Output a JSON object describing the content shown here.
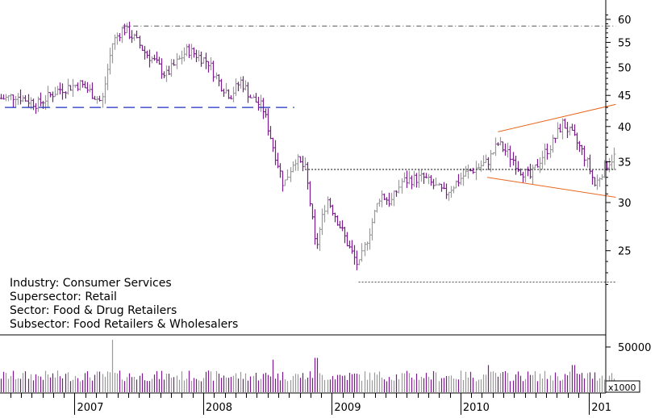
{
  "chart_data": {
    "type": "ohlc",
    "price_axis": {
      "scale": "log",
      "ylim": [
        21,
        62
      ],
      "ticks": [
        25,
        30,
        35,
        40,
        45,
        50,
        55,
        60
      ]
    },
    "volume_axis": {
      "tick": 50000,
      "unit_label": "x1000"
    },
    "x_labels": [
      "2007",
      "2008",
      "2009",
      "2010",
      "201"
    ],
    "info_lines": [
      "Industry: Consumer Services",
      "Supersector: Retail",
      "Sector: Food & Drug Retailers",
      "Subsector: Food Retailers & Wholesalers"
    ],
    "close_path": [
      [
        "2006-06",
        44.5
      ],
      [
        "2006-07",
        45
      ],
      [
        "2006-09",
        43.5
      ],
      [
        "2006-11",
        46
      ],
      [
        "2007-01",
        47
      ],
      [
        "2007-02",
        45.5
      ],
      [
        "2007-03",
        43.8
      ],
      [
        "2007-04",
        55
      ],
      [
        "2007-05",
        58
      ],
      [
        "2007-06",
        56
      ],
      [
        "2007-07",
        53
      ],
      [
        "2007-08",
        51
      ],
      [
        "2007-09",
        48.5
      ],
      [
        "2007-10",
        51
      ],
      [
        "2007-11",
        53.5
      ],
      [
        "2008-01",
        51
      ],
      [
        "2008-02",
        47
      ],
      [
        "2008-03",
        45
      ],
      [
        "2008-04",
        47.5
      ],
      [
        "2008-05",
        44.5
      ],
      [
        "2008-06",
        43
      ],
      [
        "2008-07",
        37
      ],
      [
        "2008-08",
        32
      ],
      [
        "2008-09",
        35.5
      ],
      [
        "2008-10",
        34
      ],
      [
        "2008-11",
        25
      ],
      [
        "2008-12",
        30.5
      ],
      [
        "2009-01",
        28
      ],
      [
        "2009-02",
        25.5
      ],
      [
        "2009-03",
        23.5
      ],
      [
        "2009-04",
        27
      ],
      [
        "2009-05",
        31
      ],
      [
        "2009-06",
        30
      ],
      [
        "2009-07",
        32.5
      ],
      [
        "2009-09",
        33
      ],
      [
        "2009-11",
        31
      ],
      [
        "2010-01",
        33.5
      ],
      [
        "2010-03",
        35
      ],
      [
        "2010-04",
        37.5
      ],
      [
        "2010-05",
        36
      ],
      [
        "2010-06",
        34
      ],
      [
        "2010-07",
        33
      ],
      [
        "2010-08",
        35.5
      ],
      [
        "2010-09",
        37.5
      ],
      [
        "2010-10",
        40.5
      ],
      [
        "2010-11",
        38.5
      ],
      [
        "2010-12",
        36
      ],
      [
        "2011-01",
        32
      ],
      [
        "2011-02",
        34.5
      ],
      [
        "2011-03",
        36
      ]
    ],
    "volume_spikes": [
      [
        "2007-04",
        58000
      ],
      [
        "2008-07",
        36000
      ],
      [
        "2008-11",
        38000
      ],
      [
        "2010-03",
        30000
      ],
      [
        "2010-11",
        30000
      ]
    ],
    "reference_lines": [
      {
        "style": "dash-dot",
        "color": "#555555",
        "from": [
          "2007-05",
          58.5
        ],
        "to": [
          "2011-03",
          58.5
        ]
      },
      {
        "style": "long-dash",
        "color": "#1c2fbf",
        "from": [
          "2006-06",
          43
        ],
        "to": [
          "2008-09",
          43
        ]
      },
      {
        "style": "dotted",
        "color": "#000000",
        "from": [
          "2008-10",
          34
        ],
        "to": [
          "2011-03",
          34
        ]
      },
      {
        "style": "dotted",
        "color": "#444444",
        "from": [
          "2009-03",
          22.2
        ],
        "to": [
          "2011-03",
          22.2
        ]
      },
      {
        "style": "solid",
        "color": "#e8671c",
        "from": [
          "2010-04",
          39.2
        ],
        "to": [
          "2011-03",
          43.5
        ]
      },
      {
        "style": "solid",
        "color": "#e8671c",
        "from": [
          "2010-03",
          33
        ],
        "to": [
          "2011-03",
          30.6
        ]
      }
    ],
    "colors": {
      "up": "#9a9a9a",
      "down": "#7a1c8e",
      "background": "#ffffff"
    }
  }
}
